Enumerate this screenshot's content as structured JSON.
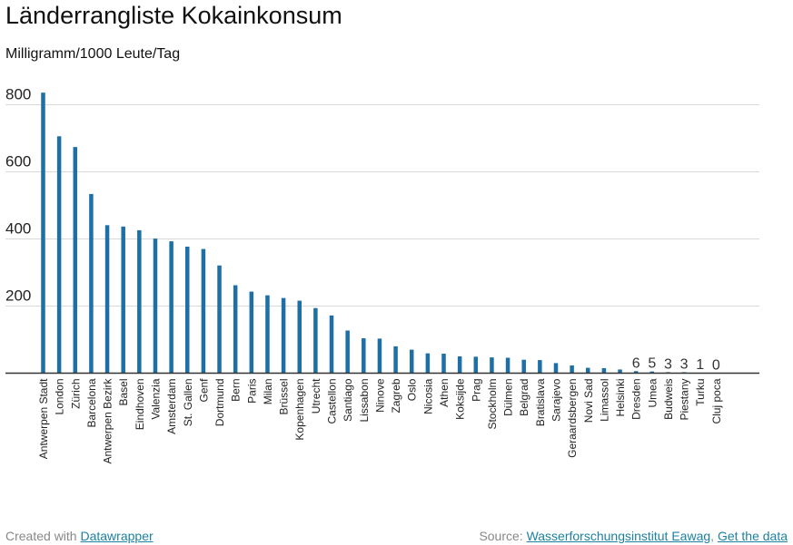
{
  "title": "Länderrangliste Kokainkonsum",
  "subtitle": "Milligramm/1000 Leute/Tag",
  "footer": {
    "created_prefix": "Created with",
    "created_link": "Datawrapper",
    "source_prefix": "Source:",
    "source_link": "Wasserforschungsinstitut Eawag",
    "separator": ",",
    "data_link": "Get the data"
  },
  "colors": {
    "bar": "#1d6fa5",
    "grid": "#d9d9d9",
    "axis": "#333333"
  },
  "chart_data": {
    "type": "bar",
    "title": "Länderrangliste Kokainkonsum",
    "ylabel": "Milligramm/1000 Leute/Tag",
    "ylim": [
      0,
      800
    ],
    "yticks": [
      200,
      400,
      600,
      800
    ],
    "grid": true,
    "categories": [
      "Antwerpen Stadt",
      "London",
      "Zürich",
      "Barcelona",
      "Antwerpen Bezirk",
      "Basel",
      "Eindhoven",
      "Valenzia",
      "Amsterdam",
      "St. Gallen",
      "Genf",
      "Dortmund",
      "Bern",
      "Paris",
      "Milan",
      "Brüssel",
      "Kopenhagen",
      "Utrecht",
      "Castellon",
      "Santiago",
      "Lissabon",
      "Ninove",
      "Zagreb",
      "Oslo",
      "Nicosia",
      "Athen",
      "Koksijde",
      "Prag",
      "Stockholm",
      "Dülmen",
      "Belgrad",
      "Bratislava",
      "Sarajevo",
      "Geraardsbergen",
      "Novi Sad",
      "Limassol",
      "Helsinki",
      "Dresden",
      "Umea",
      "Budweis",
      "Piestany",
      "Turku",
      "Cluj poca"
    ],
    "values": [
      836,
      706,
      674,
      534,
      441,
      437,
      426,
      401,
      393,
      377,
      370,
      321,
      262,
      243,
      232,
      224,
      216,
      194,
      172,
      127,
      104,
      103,
      80,
      70,
      59,
      58,
      50,
      49,
      47,
      46,
      40,
      39,
      30,
      23,
      16,
      15,
      11,
      6,
      5,
      3,
      3,
      1,
      0
    ],
    "data_labels": [
      {
        "index": 37,
        "text": "6"
      },
      {
        "index": 38,
        "text": "5"
      },
      {
        "index": 39,
        "text": "3"
      },
      {
        "index": 40,
        "text": "3"
      },
      {
        "index": 41,
        "text": "1"
      },
      {
        "index": 42,
        "text": "0"
      }
    ]
  }
}
